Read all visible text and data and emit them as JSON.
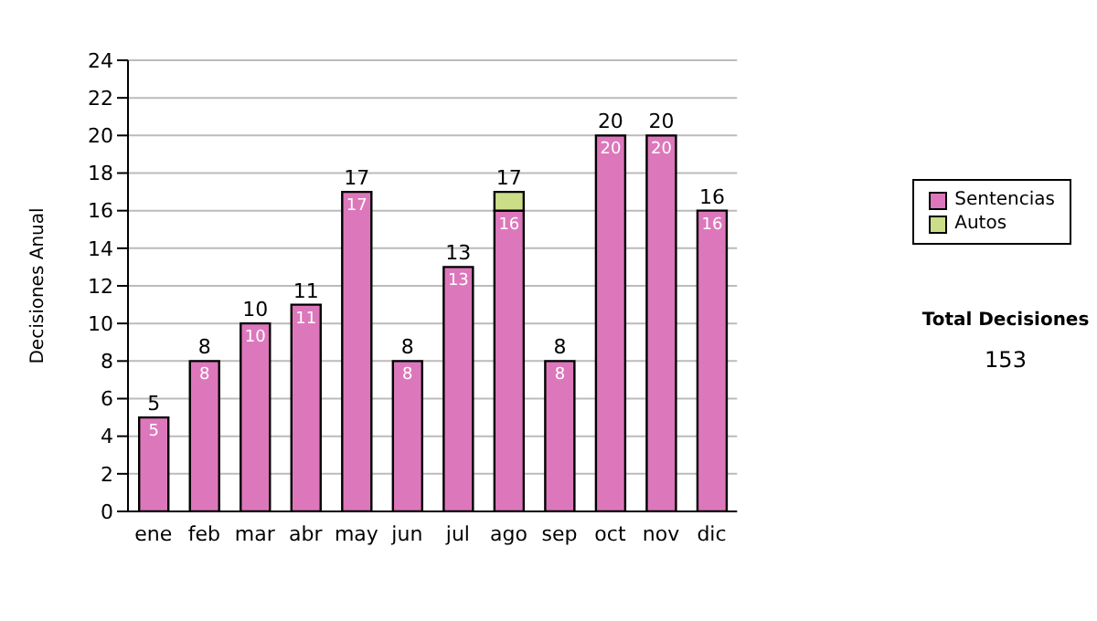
{
  "chart_data": {
    "type": "bar",
    "ylabel": "Decisiones Anual",
    "categories": [
      "ene",
      "feb",
      "mar",
      "abr",
      "may",
      "jun",
      "jul",
      "ago",
      "sep",
      "oct",
      "nov",
      "dic"
    ],
    "series": [
      {
        "name": "Sentencias",
        "color": "#dd77bb",
        "values": [
          5,
          8,
          10,
          11,
          17,
          8,
          13,
          16,
          8,
          20,
          20,
          16
        ],
        "value_labels": [
          "5",
          "8",
          "10",
          "11",
          "17",
          "8",
          "13",
          "16",
          "8",
          "20",
          "20",
          "16"
        ]
      },
      {
        "name": "Autos",
        "color": "#ccdd88",
        "values": [
          null,
          null,
          null,
          null,
          null,
          null,
          null,
          1,
          null,
          null,
          null,
          null
        ]
      }
    ],
    "stacked": true,
    "totals": [
      "5",
      "8",
      "10",
      "11",
      "17",
      "8",
      "13",
      "17",
      "8",
      "20",
      "20",
      "16"
    ],
    "ylim": [
      0,
      24
    ],
    "yticks": [
      0,
      2,
      4,
      6,
      8,
      10,
      12,
      14,
      16,
      18,
      20,
      22,
      24
    ],
    "grid": "y",
    "legend": "right",
    "annotations": [
      "Total Decisiones",
      "153"
    ]
  }
}
